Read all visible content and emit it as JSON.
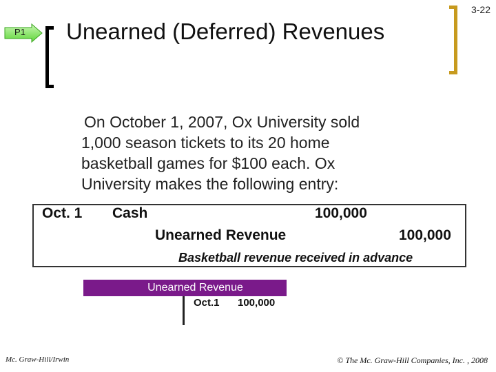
{
  "slide": {
    "number": "3-22",
    "objective_tag": "P1",
    "title": "Unearned (Deferred) Revenues",
    "body_line1": "On October 1, 2007, Ox University sold",
    "body_line2": "1,000 season tickets to its 20 home",
    "body_line3": "basketball games for $100 each. Ox",
    "body_line4": "University makes the following entry:"
  },
  "journal_entry": {
    "date": "Oct. 1",
    "debit_account": "Cash",
    "debit_amount": "100,000",
    "credit_account": "Unearned Revenue",
    "credit_amount": "100,000",
    "memo": "Basketball revenue received in advance"
  },
  "t_account": {
    "title": "Unearned Revenue",
    "credit_date": "Oct.1",
    "credit_amount": "100,000"
  },
  "footer": {
    "left": "Mc. Graw-Hill/Irwin",
    "right": "© The Mc. Graw-Hill Companies, Inc. , 2008"
  },
  "colors": {
    "arrow_fill": "#7ee85a",
    "bracket_right": "#c79a1e",
    "t_header_bg": "#7a1a8a"
  },
  "icons": {
    "objective_arrow": "right-arrow-icon"
  }
}
